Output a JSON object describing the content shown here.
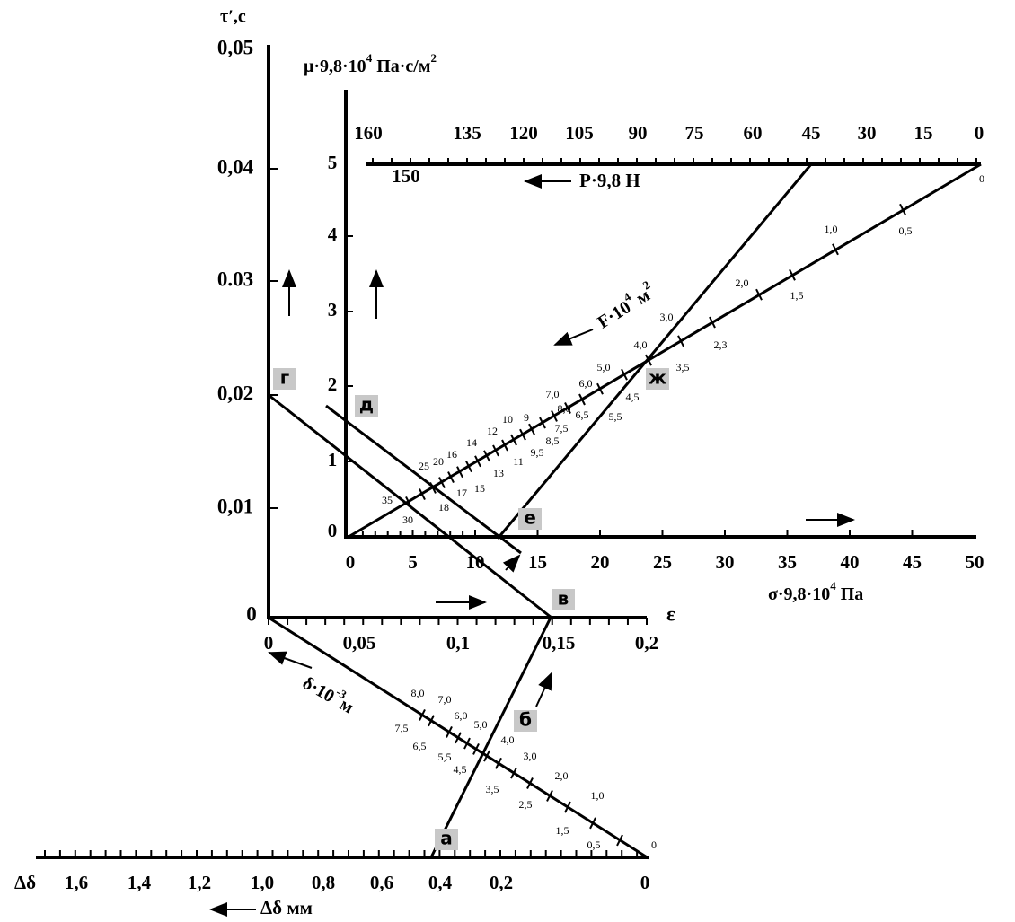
{
  "axes": {
    "tau": {
      "title": "τ′,с",
      "labels": [
        "0,05",
        "0,04",
        "0.03",
        "0,02",
        "0,01",
        "0"
      ]
    },
    "epsilon": {
      "title": "ε",
      "labels": [
        "0",
        "0,05",
        "0,1",
        "0,15",
        "0,2"
      ]
    },
    "mu": {
      "title_parts": [
        "μ·9,8·10",
        "4",
        " Па·с/м",
        "2"
      ],
      "labels": [
        "5",
        "4",
        "3",
        "2",
        "1",
        "0"
      ]
    },
    "force": {
      "title": "Р·9,8 Н",
      "labels": [
        "160",
        "135",
        "120",
        "105",
        "90",
        "75",
        "60",
        "45",
        "30",
        "15",
        "0"
      ],
      "extra": "150"
    },
    "sigma": {
      "title_parts": [
        "σ·9,8·10",
        "4",
        " Па"
      ],
      "labels": [
        "0",
        "5",
        "10",
        "15",
        "20",
        "25",
        "30",
        "35",
        "40",
        "45",
        "50"
      ]
    },
    "shrink": {
      "symbol": "Δδ",
      "title": "Δδ мм",
      "labels": [
        "1,6",
        "1,4",
        "1,2",
        "1,0",
        "0,8",
        "0,6",
        "0,4",
        "0,2",
        "0"
      ]
    },
    "delta": {
      "title_parts": [
        "δ·10",
        "-3",
        "м"
      ],
      "labels": [
        "0",
        "0,5",
        "1,0",
        "1,5",
        "2,0",
        "2,5",
        "3,0",
        "3,5",
        "4,0",
        "4,5",
        "5,0",
        "5,5",
        "6,0",
        "6,5",
        "7,0",
        "7,5",
        "8,0"
      ]
    },
    "area": {
      "title_parts": [
        "F·10",
        "4",
        " м",
        "2"
      ],
      "labels": [
        "0",
        "0,5",
        "1,0",
        "1,5",
        "2,0",
        "2,3",
        "3,0",
        "3,5",
        "4,0",
        "4,5",
        "5,0",
        "5,5",
        "6,0",
        "6,5",
        "7,0",
        "7,5",
        "8,0",
        "8,5",
        "9,5",
        "9",
        "10",
        "12",
        "11",
        "14",
        "13",
        "16",
        "15",
        "20",
        "25",
        "17",
        "18",
        "35",
        "30"
      ]
    }
  },
  "points": [
    "а",
    "б",
    "в",
    "г",
    "д",
    "е",
    "ж"
  ]
}
